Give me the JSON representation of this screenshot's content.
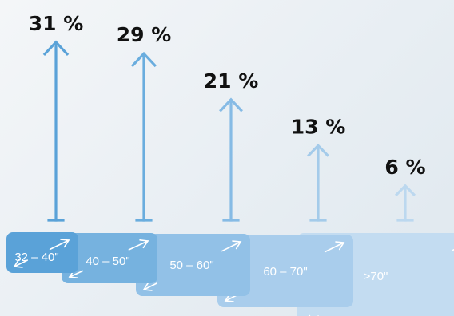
{
  "chart_data": {
    "type": "bar",
    "title": "",
    "xlabel": "",
    "ylabel": "",
    "categories": [
      "32 – 40\"",
      "40 – 50\"",
      "50 – 60\"",
      "60 – 70\"",
      ">70\""
    ],
    "values": [
      31,
      29,
      21,
      13,
      6
    ],
    "value_labels": [
      "31 %",
      "29 %",
      "21 %",
      "13 %",
      "6 %"
    ],
    "unit": "%",
    "ylim": [
      0,
      31
    ],
    "colors": [
      "#5aa2d8",
      "#6aadde",
      "#86bbe5",
      "#a4cbea",
      "#bcd8ef"
    ],
    "tv_colors": [
      "#5aa2d8",
      "#76b2df",
      "#92c1e7",
      "#a9cdec",
      "#c3dcf1"
    ]
  }
}
